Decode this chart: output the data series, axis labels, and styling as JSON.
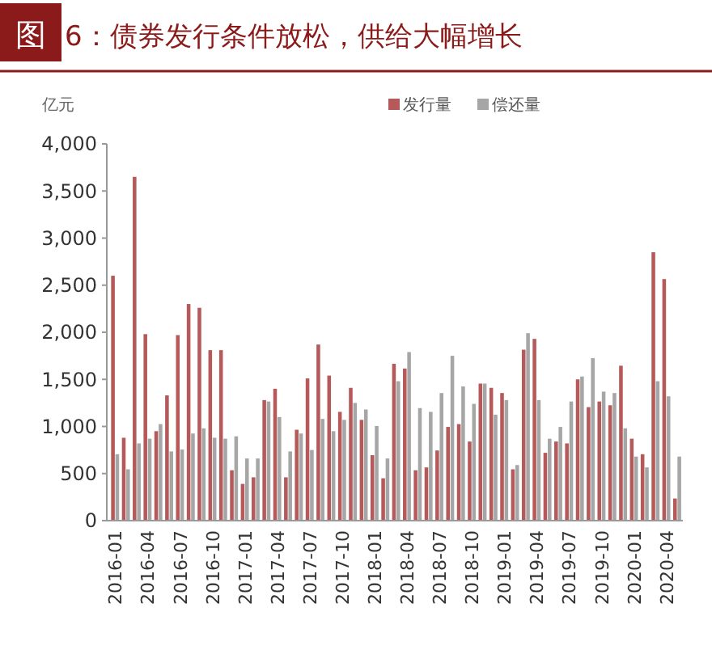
{
  "chart_data": {
    "type": "bar",
    "title": "图 6：债券发行条件放松，供给大幅增长",
    "ylabel": "亿元",
    "categories": [
      "2016-01",
      null,
      null,
      "2016-04",
      null,
      null,
      "2016-07",
      null,
      null,
      "2016-10",
      null,
      null,
      "2017-01",
      null,
      null,
      "2017-04",
      null,
      null,
      "2017-07",
      null,
      null,
      "2017-10",
      null,
      null,
      "2018-01",
      null,
      null,
      "2018-04",
      null,
      null,
      "2018-07",
      null,
      null,
      "2018-10",
      null,
      null,
      "2019-01",
      null,
      null,
      "2019-04",
      null,
      null,
      "2019-07",
      null,
      null,
      "2019-10",
      null,
      null,
      "2020-01",
      null,
      null,
      "2020-04",
      null
    ],
    "series": [
      {
        "name": "发行量",
        "color": "#b5595a",
        "values": [
          2600,
          880,
          3650,
          1980,
          950,
          1330,
          1970,
          2300,
          2260,
          1810,
          1810,
          535,
          390,
          460,
          1280,
          1400,
          460,
          965,
          1510,
          1870,
          1540,
          1155,
          1410,
          1070,
          695,
          450,
          1665,
          1615,
          535,
          565,
          745,
          995,
          1025,
          840,
          1455,
          1410,
          1355,
          545,
          1815,
          1930,
          720,
          840,
          820,
          1500,
          1205,
          1265,
          1225,
          1645,
          870,
          705,
          2850,
          2565,
          235
        ]
      },
      {
        "name": "偿还量",
        "color": "#a6a6a6",
        "values": [
          705,
          545,
          820,
          870,
          1025,
          735,
          755,
          925,
          980,
          880,
          870,
          895,
          660,
          660,
          1265,
          1100,
          735,
          925,
          750,
          1080,
          950,
          1070,
          1250,
          1180,
          1005,
          660,
          1480,
          1790,
          1195,
          1155,
          1355,
          1750,
          1425,
          1240,
          1455,
          1125,
          1280,
          590,
          1990,
          1280,
          870,
          995,
          1265,
          1530,
          1725,
          1370,
          1355,
          980,
          680,
          565,
          1480,
          1320,
          680
        ]
      }
    ],
    "ylim": [
      0,
      4000
    ],
    "yticks": [
      0,
      500,
      {
        "value": 1000,
        "label": "1,000"
      },
      {
        "value": 1500,
        "label": "1,500"
      },
      {
        "value": 2000,
        "label": "2,000"
      },
      {
        "value": 2500,
        "label": "2,500"
      },
      {
        "value": 3000,
        "label": "3,000"
      },
      {
        "value": 3500,
        "label": "3,500"
      },
      {
        "value": 4000,
        "label": "4,000"
      }
    ],
    "grid": false,
    "legend": "top right"
  }
}
